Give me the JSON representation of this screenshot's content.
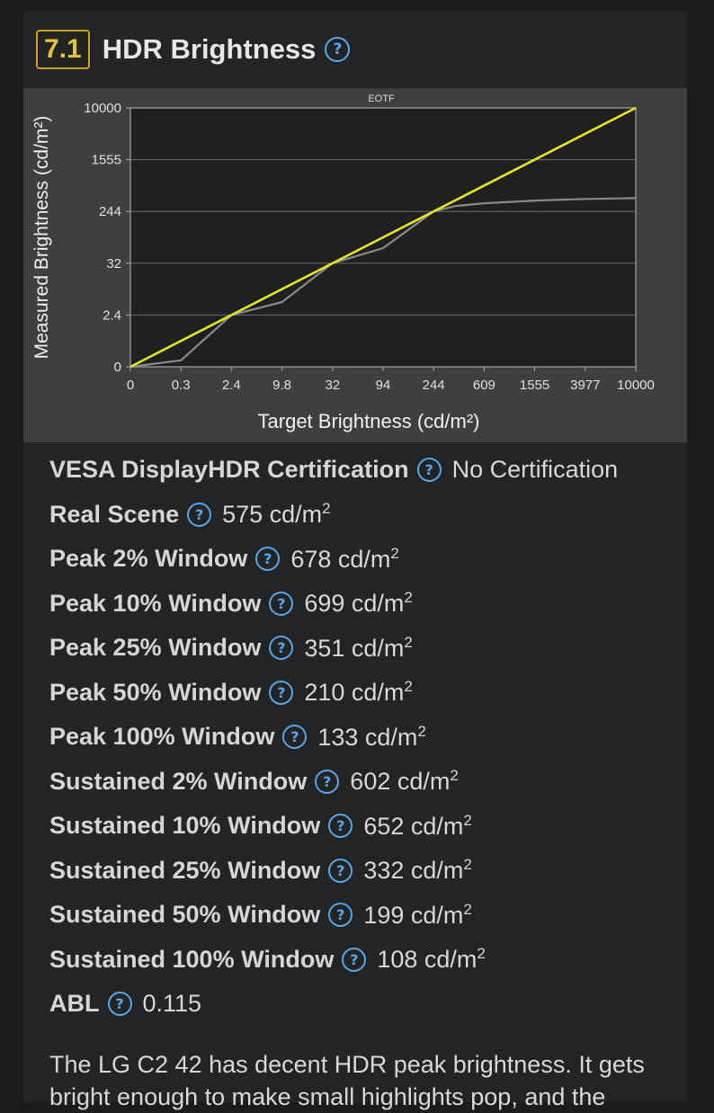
{
  "section": {
    "number": "7.1",
    "title": "HDR Brightness",
    "help_icon": "help-circle-icon"
  },
  "chart_data": {
    "type": "line",
    "title": "EOTF",
    "xlabel": "Target Brightness (cd/m²)",
    "ylabel": "Measured Brightness (cd/m²)",
    "x_ticks": [
      "0",
      "0.3",
      "2.4",
      "9.8",
      "32",
      "94",
      "244",
      "609",
      "1555",
      "3977",
      "10000"
    ],
    "y_ticks": [
      "0",
      "2.4",
      "32",
      "244",
      "1555",
      "10000"
    ],
    "grid": true,
    "series": [
      {
        "name": "",
        "color": "#8a8a8a",
        "x": [
          "0",
          "0.3",
          "2.4",
          "9.8",
          "32",
          "94",
          "244",
          "400",
          "609",
          "1555",
          "3977",
          "10000"
        ],
        "y": [
          "0",
          "0.3",
          "2.4",
          "9.8",
          "32",
          "94",
          "244",
          "380",
          "450",
          "520",
          "560",
          "580"
        ]
      },
      {
        "name": "",
        "color": "#e4e32a",
        "x": [
          "0",
          "10000"
        ],
        "y": [
          "0",
          "10000"
        ]
      }
    ]
  },
  "specs": [
    {
      "label": "VESA DisplayHDR Certification",
      "value": "No Certification",
      "unit": "",
      "sup": ""
    },
    {
      "label": "Real Scene",
      "value": "575",
      "unit": " cd/m",
      "sup": "2"
    },
    {
      "label": "Peak 2% Window",
      "value": "678",
      "unit": " cd/m",
      "sup": "2"
    },
    {
      "label": "Peak 10% Window",
      "value": "699",
      "unit": " cd/m",
      "sup": "2"
    },
    {
      "label": "Peak 25% Window",
      "value": "351",
      "unit": " cd/m",
      "sup": "2"
    },
    {
      "label": "Peak 50% Window",
      "value": "210",
      "unit": " cd/m",
      "sup": "2"
    },
    {
      "label": "Peak 100% Window",
      "value": "133",
      "unit": " cd/m",
      "sup": "2"
    },
    {
      "label": "Sustained 2% Window",
      "value": "602",
      "unit": " cd/m",
      "sup": "2"
    },
    {
      "label": "Sustained 10% Window",
      "value": "652",
      "unit": " cd/m",
      "sup": "2"
    },
    {
      "label": "Sustained 25% Window",
      "value": "332",
      "unit": " cd/m",
      "sup": "2"
    },
    {
      "label": "Sustained 50% Window",
      "value": "199",
      "unit": " cd/m",
      "sup": "2"
    },
    {
      "label": "Sustained 100% Window",
      "value": "108",
      "unit": " cd/m",
      "sup": "2"
    },
    {
      "label": "ABL",
      "value": "0.115",
      "unit": "",
      "sup": ""
    }
  ],
  "paragraph": "The LG C2 42 has decent HDR peak brightness. It gets bright enough to make small highlights pop, and the"
}
